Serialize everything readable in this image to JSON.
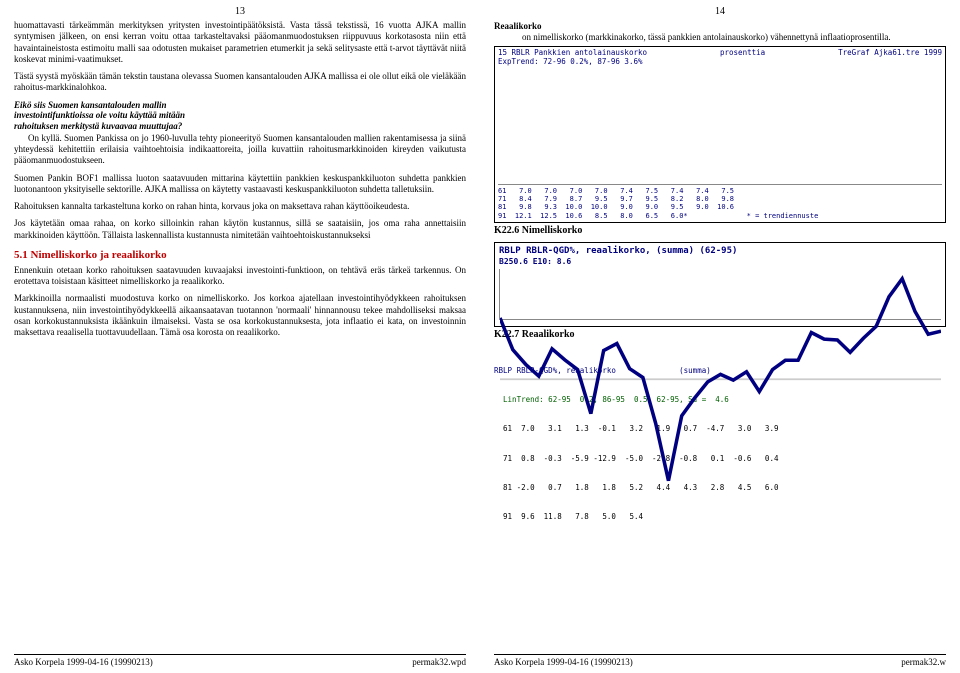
{
  "left": {
    "pageNum": "13",
    "p1a": "huomattavasti tärkeämmän merkityksen yritysten investointipäätöksistä. Vasta tässä tekstissä, 16 vuotta AJKA mallin syntymisen jälkeen, on ensi kerran voitu ottaa tarkasteltavaksi pääomanmuodostuksen riippuvuus korkotasosta niin että havaintaineistosta estimoitu malli saa odotusten mukaiset parametrien etumerkit ja sekä selitysaste että t-arvot täyttävät niitä koskevat minimi-vaatimukset.",
    "p1b": "Tästä syystä myöskään tämän tekstin taustana olevassa Suomen kansantalouden AJKA mallissa ei ole ollut eikä ole vieläkään rahoitus-markkinalohkoa.",
    "q1a": "Eikö siis Suomen kansantalouden mallin",
    "q1b": "investointifunktioissa ole voitu käyttää mitään",
    "q1c": "rahoituksen merkitystä kuvaavaa muuttujaa?",
    "p2": "On kyllä. Suomen Pankissa on jo 1960-luvulla tehty pioneerityö Suomen kansantalouden mallien rakentamisessa ja siinä yhteydessä kehitettiin erilaisia vaihtoehtoisia indikaattoreita, joilla kuvattiin rahoitusmarkkinoiden kireyden vaikutusta pääomanmuodostukseen.",
    "p3": "Suomen Pankin BOF1 mallissa luoton saatavuuden mittarina käytettiin pankkien keskuspankkiluoton suhdetta pankkien luotonantoon yksityiselle sektorille. AJKA mallissa on käytetty vastaavasti keskuspankkiluoton suhdetta talletuksiin.",
    "p4": "Rahoituksen kannalta tarkasteltuna korko on rahan hinta, korvaus joka on maksettava rahan käyttöoikeudesta.",
    "p5": "Jos käytetään omaa rahaa, on korko silloinkin rahan käytön kustannus, sillä se saataisiin, jos oma raha annettaisiin markkinoiden käyttöön. Tällaista laskennallista kustannusta nimitetään vaihtoehtoiskustannukseksi",
    "h51": "5.1 Nimelliskorko ja reaalikorko",
    "p6": "Ennenkuin otetaan korko rahoituksen saatavuuden kuvaajaksi investointi-funktioon, on tehtävä eräs tärkeä tarkennus. On erotettava toisistaan käsitteet nimelliskorko ja reaalikorko.",
    "p7": "Markkinoilla normaalisti muodostuva korko on nimelliskorko. Jos korkoa ajatellaan investointihyödykkeen rahoituksen kustannuksena, niin investointihyödykkeellä aikaansaatavan tuotannon 'normaali' hinnannousu tekee mahdolliseksi maksaa osan korkokustannuksista ikäänkuin ilmaiseksi. Vasta se osa korkokustannuksesta, jota inflaatio ei kata, on investoinnin maksettava reaalisella tuottavuudellaan. Tämä osa korosta on reaalikorko."
  },
  "right": {
    "pageNum": "14",
    "hReaali": "Reaalikorko",
    "pReaali": "on nimelliskorko (markkinakorko, tässä pankkien antolainauskorko) vähennettynä inflaatioprosentilla.",
    "chart1": {
      "headerLeft": "15 RBLR Pankkien antolainauskorko",
      "headerMid": "prosenttia",
      "headerRight": "TreGraf Ajka61.tre 1999",
      "sub": "ExpTrend: 72-96  0.2%, 87-96  3.6%",
      "groups": [
        {
          "v": [
            7.0,
            8.4,
            9.8,
            12.1,
            9.6
          ]
        },
        {
          "v": [
            7.0,
            7.9,
            9.3,
            12.5,
            11.8
          ]
        },
        {
          "v": [
            7.0,
            8.7,
            10.0,
            10.6,
            7.8
          ]
        },
        {
          "v": [
            7.0,
            9.5,
            10.0,
            8.5,
            6.5
          ]
        },
        {
          "v": [
            7.4,
            9.7,
            9.0,
            8.0,
            6.5
          ]
        },
        {
          "v": [
            7.5,
            9.5,
            9.0,
            6.5,
            9.0
          ]
        },
        {
          "v": [
            7.4,
            8.2,
            9.5,
            6.0,
            10.6
          ]
        },
        {
          "v": [
            7.4,
            8.0,
            9.0,
            9.0,
            11.8
          ]
        },
        {
          "v": [
            7.5,
            9.8,
            10.6,
            10.6
          ]
        }
      ],
      "bar_colors": [
        "#808000",
        "#c0c0c0",
        "#000080",
        "#808080",
        "#000000"
      ],
      "ymax": 13,
      "tableRows": [
        "61   7.0   7.0   7.0   7.0   7.4   7.5   7.4   7.4   7.5",
        "71   8.4   7.9   8.7   9.5   9.7   9.5   8.2   8.0   9.8",
        "81   9.8   9.3  10.0  10.0   9.0   9.0   9.5   9.0  10.6",
        "91  12.1  12.5  10.6   8.5   8.0   6.5   6.0*              * = trendiennuste"
      ],
      "caption": "K22.6 Nimelliskorko"
    },
    "chart2": {
      "title": "RBLP RBLR-QGD%, reaalikorko, (summa)   (62-95)",
      "sub": "B250.6   E10: 8.6",
      "caption": "K22.7 Reaalikorko",
      "line_color": "#000080"
    },
    "mono": {
      "l1": "RBLP RBLR-QGD%, reaalikorko              (summa)",
      "l2": "  LinTrend: 62-95  0.2, 86-95  0.5  62-95, Sd =  4.6",
      "l3": "  61  7.0   3.1   1.3  -0.1   3.2   1.9   0.7  -4.7   3.0   3.9",
      "l4": "  71  0.8  -0.3  -5.9 -12.9  -5.0  -2.8  -0.8   0.1  -0.6   0.4",
      "l5": "  81 -2.0   0.7   1.8   1.8   5.2   4.4   4.3   2.8   4.5   6.0",
      "l6": "  91  9.6  11.8   7.8   5.0   5.4"
    }
  },
  "footer": {
    "author": "Asko Korpela 1999-04-16 (19990213)",
    "file": "permak32.wpd",
    "fileR": "permak32.w"
  }
}
